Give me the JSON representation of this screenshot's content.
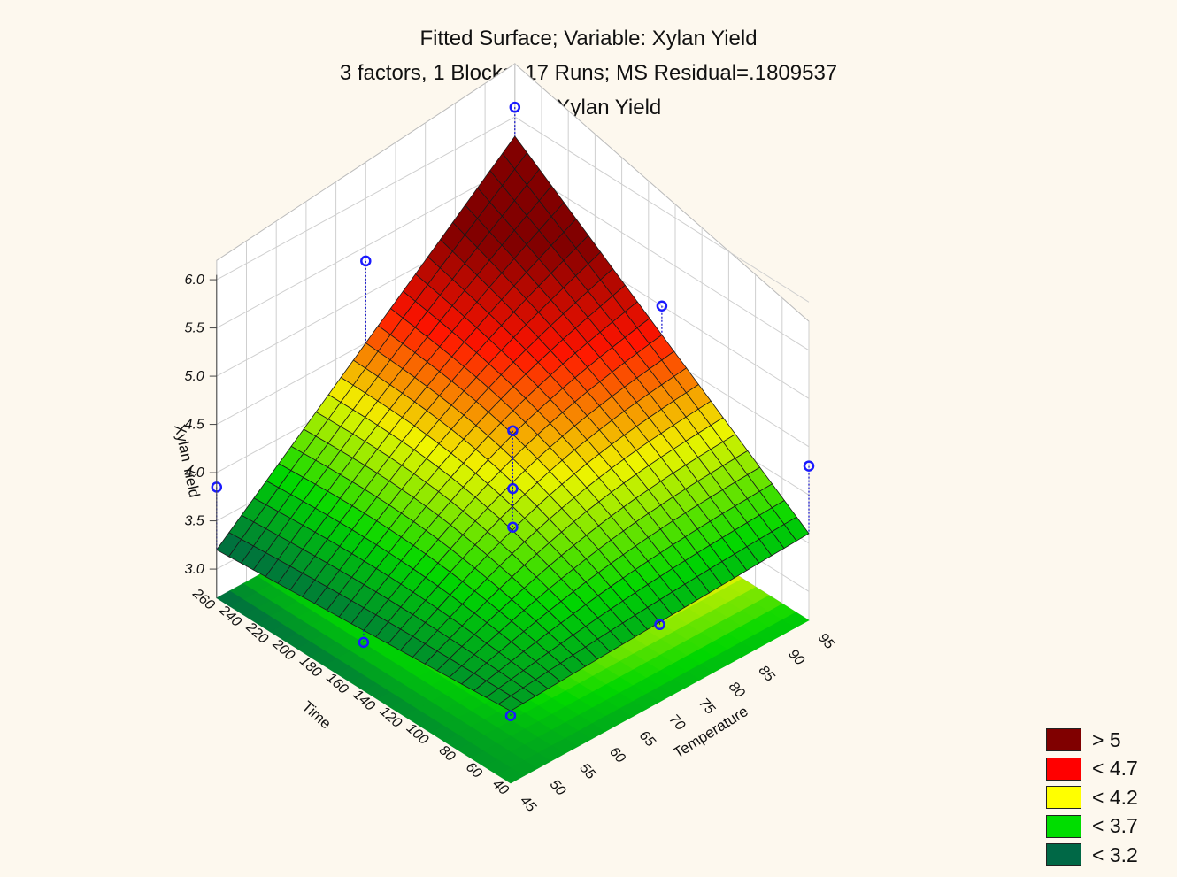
{
  "chart_data": {
    "type": "surface3d",
    "title": "Fitted Surface; Variable: Xylan Yield",
    "subtitle": "3 factors, 1 Blocks, 17 Runs; MS Residual=.1809537",
    "subtitle2": "DV: Xylan Yield",
    "xlabel": "Temperature",
    "ylabel": "Time",
    "zlabel": "Xylan Yield",
    "x_ticks": [
      "45",
      "50",
      "55",
      "60",
      "65",
      "70",
      "75",
      "80",
      "85",
      "90",
      "95"
    ],
    "y_ticks": [
      "40",
      "60",
      "80",
      "100",
      "120",
      "140",
      "160",
      "180",
      "200",
      "220",
      "240",
      "260"
    ],
    "z_ticks": [
      "3.0",
      "3.5",
      "4.0",
      "4.5",
      "5.0",
      "5.5",
      "6.0"
    ],
    "xlim": [
      45,
      95
    ],
    "ylim": [
      40,
      260
    ],
    "zlim": [
      2.7,
      6.0
    ],
    "surface_corners": {
      "temp45_time40": 3.45,
      "temp45_time260": 3.2,
      "temp95_time40": 3.6,
      "temp95_time260": 5.8
    },
    "observed_points": [
      {
        "temperature": 45,
        "time": 40,
        "yield": 3.4
      },
      {
        "temperature": 45,
        "time": 260,
        "yield": 3.85
      },
      {
        "temperature": 95,
        "time": 260,
        "yield": 6.1
      },
      {
        "temperature": 95,
        "time": 40,
        "yield": 4.3
      },
      {
        "temperature": 45,
        "time": 150,
        "yield": 3.2
      },
      {
        "temperature": 95,
        "time": 150,
        "yield": 5.0
      },
      {
        "temperature": 70,
        "time": 40,
        "yield": 3.5
      },
      {
        "temperature": 70,
        "time": 260,
        "yield": 5.35
      },
      {
        "temperature": 70,
        "time": 150,
        "yield": 4.55
      },
      {
        "temperature": 70,
        "time": 150,
        "yield": 3.95
      },
      {
        "temperature": 70,
        "time": 150,
        "yield": 3.55
      }
    ],
    "legend": [
      {
        "label": "> 5",
        "color": "#800000"
      },
      {
        "label": "< 4.7",
        "color": "#ff0000"
      },
      {
        "label": "< 4.2",
        "color": "#ffff00"
      },
      {
        "label": "< 3.7",
        "color": "#00dd00"
      },
      {
        "label": "< 3.2",
        "color": "#006846"
      }
    ]
  }
}
